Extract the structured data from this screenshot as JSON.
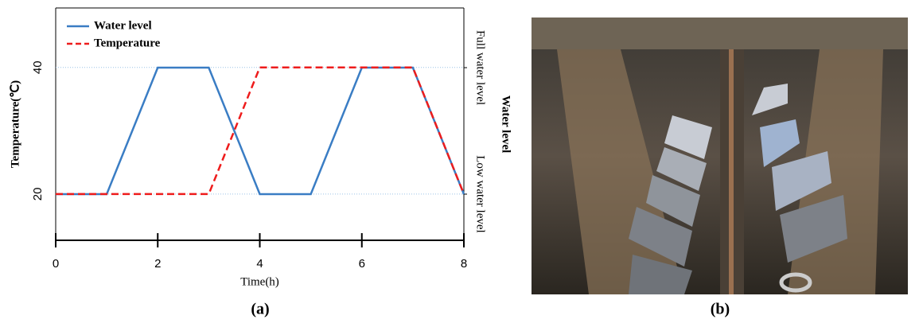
{
  "chart_data": {
    "type": "line",
    "x": [
      0,
      1,
      2,
      3,
      4,
      5,
      6,
      7,
      8
    ],
    "xlim": [
      0,
      8
    ],
    "xticks": [
      0,
      2,
      4,
      6,
      8
    ],
    "xlabel": "Time(h)",
    "ylim": [
      12.7,
      49.4
    ],
    "yticks": [
      20,
      40
    ],
    "ylabel": "Temperature(℃)",
    "y2lim": [
      -0.365,
      1.472
    ],
    "y2ticks": [
      {
        "value": 0,
        "label": "Low water level"
      },
      {
        "value": 1,
        "label": "Full water level"
      }
    ],
    "y2label": "Water level",
    "grid": true,
    "legend": "upper left",
    "series": [
      {
        "name": "Water level",
        "color": "#3a7dc4",
        "line_style": "solid",
        "axis": "y2",
        "values": [
          0,
          0,
          1,
          1,
          0,
          0,
          1,
          1,
          0
        ]
      },
      {
        "name": "Temperature",
        "color": "#ee1c1c",
        "line_style": "dashed",
        "values": [
          20,
          20,
          20,
          20,
          40,
          40,
          40,
          40,
          20
        ]
      }
    ]
  },
  "panel_labels": [
    "(a)",
    "(b)"
  ]
}
